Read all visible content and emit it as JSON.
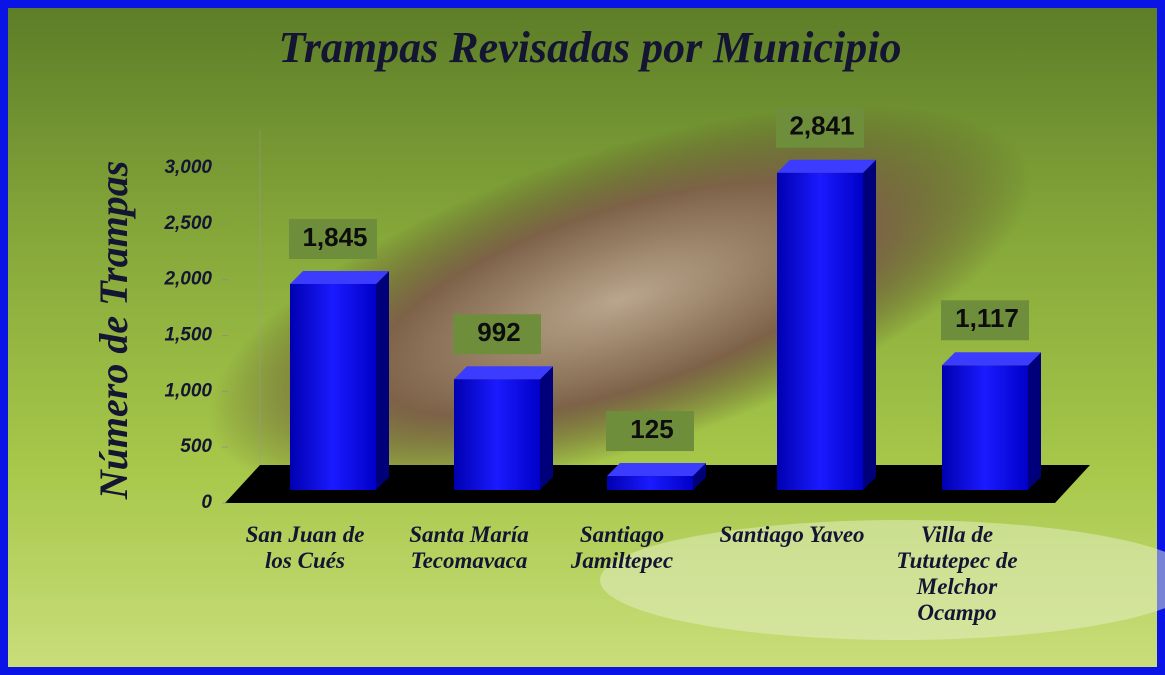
{
  "chart_data": {
    "type": "bar3d",
    "title": "Trampas Revisadas por Municipio",
    "y_label": "Número de Trampas",
    "categories": [
      "San Juan de los Cués",
      "Santa María Tecomavaca",
      "Santiago Jamiltepec",
      "Santiago Yaveo",
      "Villa de Tututepec de Melchor Ocampo"
    ],
    "values": [
      1845,
      992,
      125,
      2841,
      1117
    ],
    "value_labels": [
      "1,845",
      "992",
      "125",
      "2,841",
      "1,117"
    ],
    "color": "#0a0ae0",
    "ylim": [
      0,
      3000
    ],
    "yticks": [
      0,
      500,
      {
        "value": 1000,
        "label": "1,000"
      },
      {
        "value": 1500,
        "label": "1,500"
      },
      {
        "value": 2000,
        "label": "2,000"
      },
      {
        "value": 2500,
        "label": "2,500"
      },
      {
        "value": 3000,
        "label": "3,000"
      }
    ]
  }
}
